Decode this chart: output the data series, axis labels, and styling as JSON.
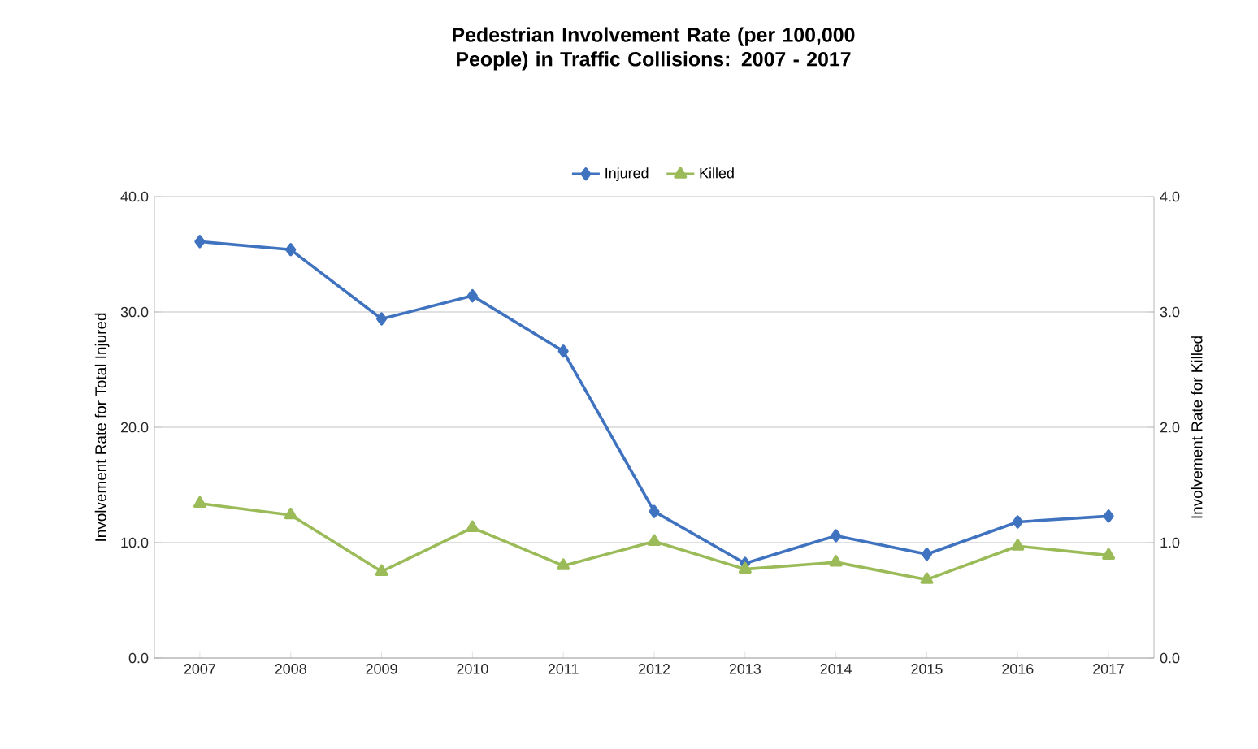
{
  "chart_data": {
    "type": "line",
    "title": "Pedestrian Involvement Rate (per 100,000 People) in Traffic Collisions: 2007 - 2017",
    "categories": [
      "2007",
      "2008",
      "2009",
      "2010",
      "2011",
      "2012",
      "2013",
      "2014",
      "2015",
      "2016",
      "2017"
    ],
    "ylabel": "Involvement Rate for Total Injured",
    "y2label": "Involvement Rate for Killed",
    "ylim": [
      0,
      40
    ],
    "yticks": [
      {
        "value": 0,
        "label": "0.0"
      },
      {
        "value": 10,
        "label": "10.0"
      },
      {
        "value": 20,
        "label": "20.0"
      },
      {
        "value": 30,
        "label": "30.0"
      },
      {
        "value": 40,
        "label": "40.0"
      }
    ],
    "y2lim": [
      0,
      4
    ],
    "y2ticks": [
      {
        "value": 0,
        "label": "0.0"
      },
      {
        "value": 1,
        "label": "1.0"
      },
      {
        "value": 2,
        "label": "2.0"
      },
      {
        "value": 3,
        "label": "3.0"
      },
      {
        "value": 4,
        "label": "4.0"
      }
    ],
    "series": [
      {
        "name": "Injured",
        "color": "#3f72bf",
        "marker": "diamond",
        "values": [
          36.1,
          35.4,
          29.4,
          31.4,
          26.6,
          12.7,
          8.2,
          10.6,
          9.0,
          11.8,
          12.3
        ]
      },
      {
        "name": "Killed",
        "color": "#9bbb59",
        "marker": "triangle",
        "axis": "y2",
        "values": [
          1.34,
          1.24,
          0.75,
          1.13,
          0.8,
          1.01,
          0.77,
          0.83,
          0.68,
          0.97,
          0.89
        ]
      }
    ],
    "grid": "y",
    "legend": "top",
    "line_style": "solid"
  }
}
